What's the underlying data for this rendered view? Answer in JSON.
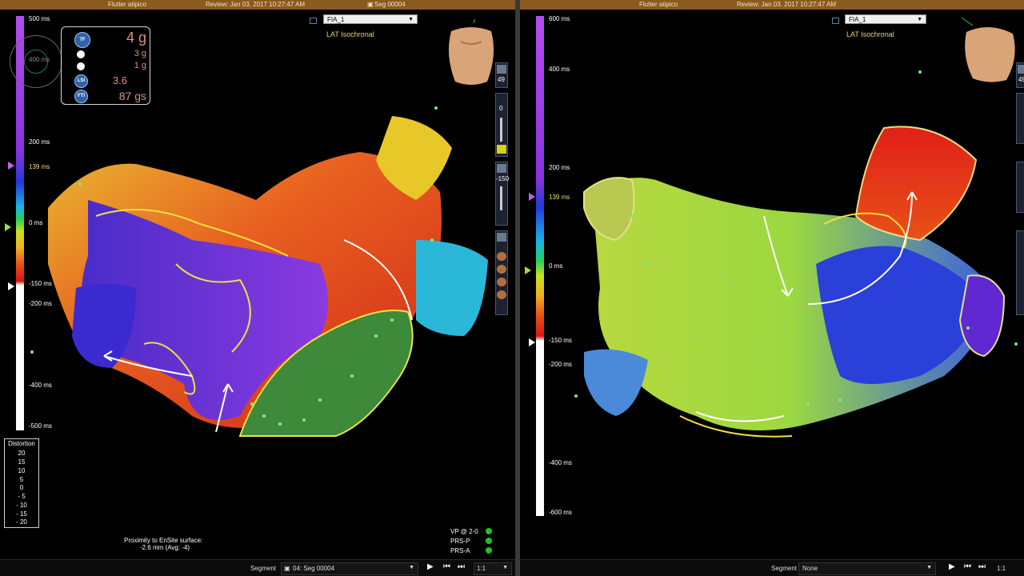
{
  "left": {
    "header": {
      "study": "Flutter atipico",
      "review": "Review: Jan 03, 2017 10:27:47 AM",
      "segment": "Seg 00004"
    },
    "map_select": "FIA_1",
    "map_type": "LAT Isochronal",
    "scale": [
      {
        "label": "500 ms",
        "style": "w"
      },
      {
        "label": "200 ms",
        "style": "w"
      },
      {
        "label": "139 ms",
        "style": "y"
      },
      {
        "label": "0 ms",
        "style": "w"
      },
      {
        "label": "-150 ms",
        "style": "w"
      },
      {
        "label": "-200 ms",
        "style": "w"
      },
      {
        "label": "-400 ms",
        "style": "w"
      },
      {
        "label": "-500 ms",
        "style": "w"
      }
    ],
    "scale_inner_label": "400 ms",
    "force": {
      "tf": {
        "icon": "TF",
        "value": "4 g"
      },
      "lateral": {
        "value": "3 g"
      },
      "axial": {
        "value": "1 g"
      },
      "lsi": {
        "icon": "LSI",
        "value": "3.6"
      },
      "fti": {
        "icon": "FTI",
        "value": "87 gs"
      }
    },
    "toolbar_count": "49",
    "toolbar_vals": [
      "0",
      "-150"
    ],
    "distortion": {
      "title": "Distortion",
      "rows": [
        "20",
        "15",
        "10",
        "5",
        "0",
        "- 5",
        "- 10",
        "- 15",
        "- 20"
      ]
    },
    "proximity": {
      "line1": "Proximity to EnSite surface:",
      "line2": "-2.6 mm (Avg: -4)"
    },
    "status": [
      {
        "label": "VP @ 2-0"
      },
      {
        "label": "PRS-P"
      },
      {
        "label": "PRS-A"
      }
    ],
    "bottom": {
      "segment_label": "Segment",
      "segment_value": "04: Seg 00004",
      "zoom": "1:1"
    }
  },
  "right": {
    "header": {
      "study": "Flutter atipico",
      "review": "Review: Jan 03, 2017 10:27:47 AM"
    },
    "map_select": "FIA_1",
    "map_type": "LAT Isochronal",
    "scale": [
      {
        "label": "600 ms",
        "style": "w"
      },
      {
        "label": "400 ms",
        "style": "w"
      },
      {
        "label": "200 ms",
        "style": "w"
      },
      {
        "label": "139 ms",
        "style": "y"
      },
      {
        "label": "0 ms",
        "style": "w"
      },
      {
        "label": "-150 ms",
        "style": "w"
      },
      {
        "label": "-200 ms",
        "style": "w"
      },
      {
        "label": "-400 ms",
        "style": "w"
      },
      {
        "label": "-600 ms",
        "style": "w"
      }
    ],
    "toolbar_count": "49",
    "bottom": {
      "segment_label": "Segment",
      "segment_value": "None",
      "zoom": "1:1"
    }
  },
  "colors": {
    "header_bg": "#8a5a1e",
    "scale_gradient": [
      "#b64cf0",
      "#8833e0",
      "#2438d8",
      "#19b4e8",
      "#27d05a",
      "#c8e020",
      "#f0b020",
      "#e85018",
      "#d81818",
      "#ffffff"
    ],
    "boundary_line": "#f0e040",
    "activation_arrow": "#ffffff",
    "point_marker": "#7ee87e"
  },
  "icons": [
    "play-icon",
    "step-back-icon",
    "step-forward-icon",
    "torso-icon",
    "dropdown-chevron-icon",
    "led-icon"
  ]
}
